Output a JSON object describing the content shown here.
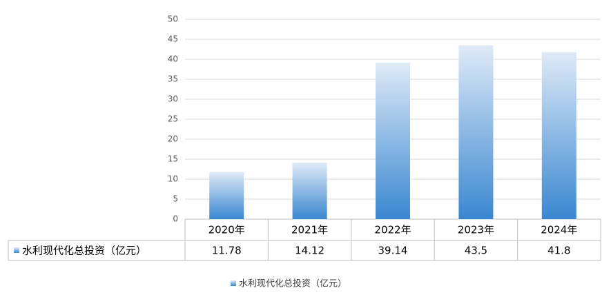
{
  "chart_data": {
    "type": "bar",
    "categories": [
      "2020年",
      "2021年",
      "2022年",
      "2023年",
      "2024年"
    ],
    "series": [
      {
        "name": "水利现代化总投资（亿元）",
        "color": "#3a87d0",
        "values": [
          11.78,
          14.12,
          39.14,
          43.5,
          41.8
        ]
      }
    ],
    "ylim": [
      0,
      50
    ],
    "yticks": [
      0,
      5,
      10,
      15,
      20,
      25,
      30,
      35,
      40,
      45,
      50
    ],
    "grid": true,
    "data_table": true,
    "legend": "bottom"
  }
}
